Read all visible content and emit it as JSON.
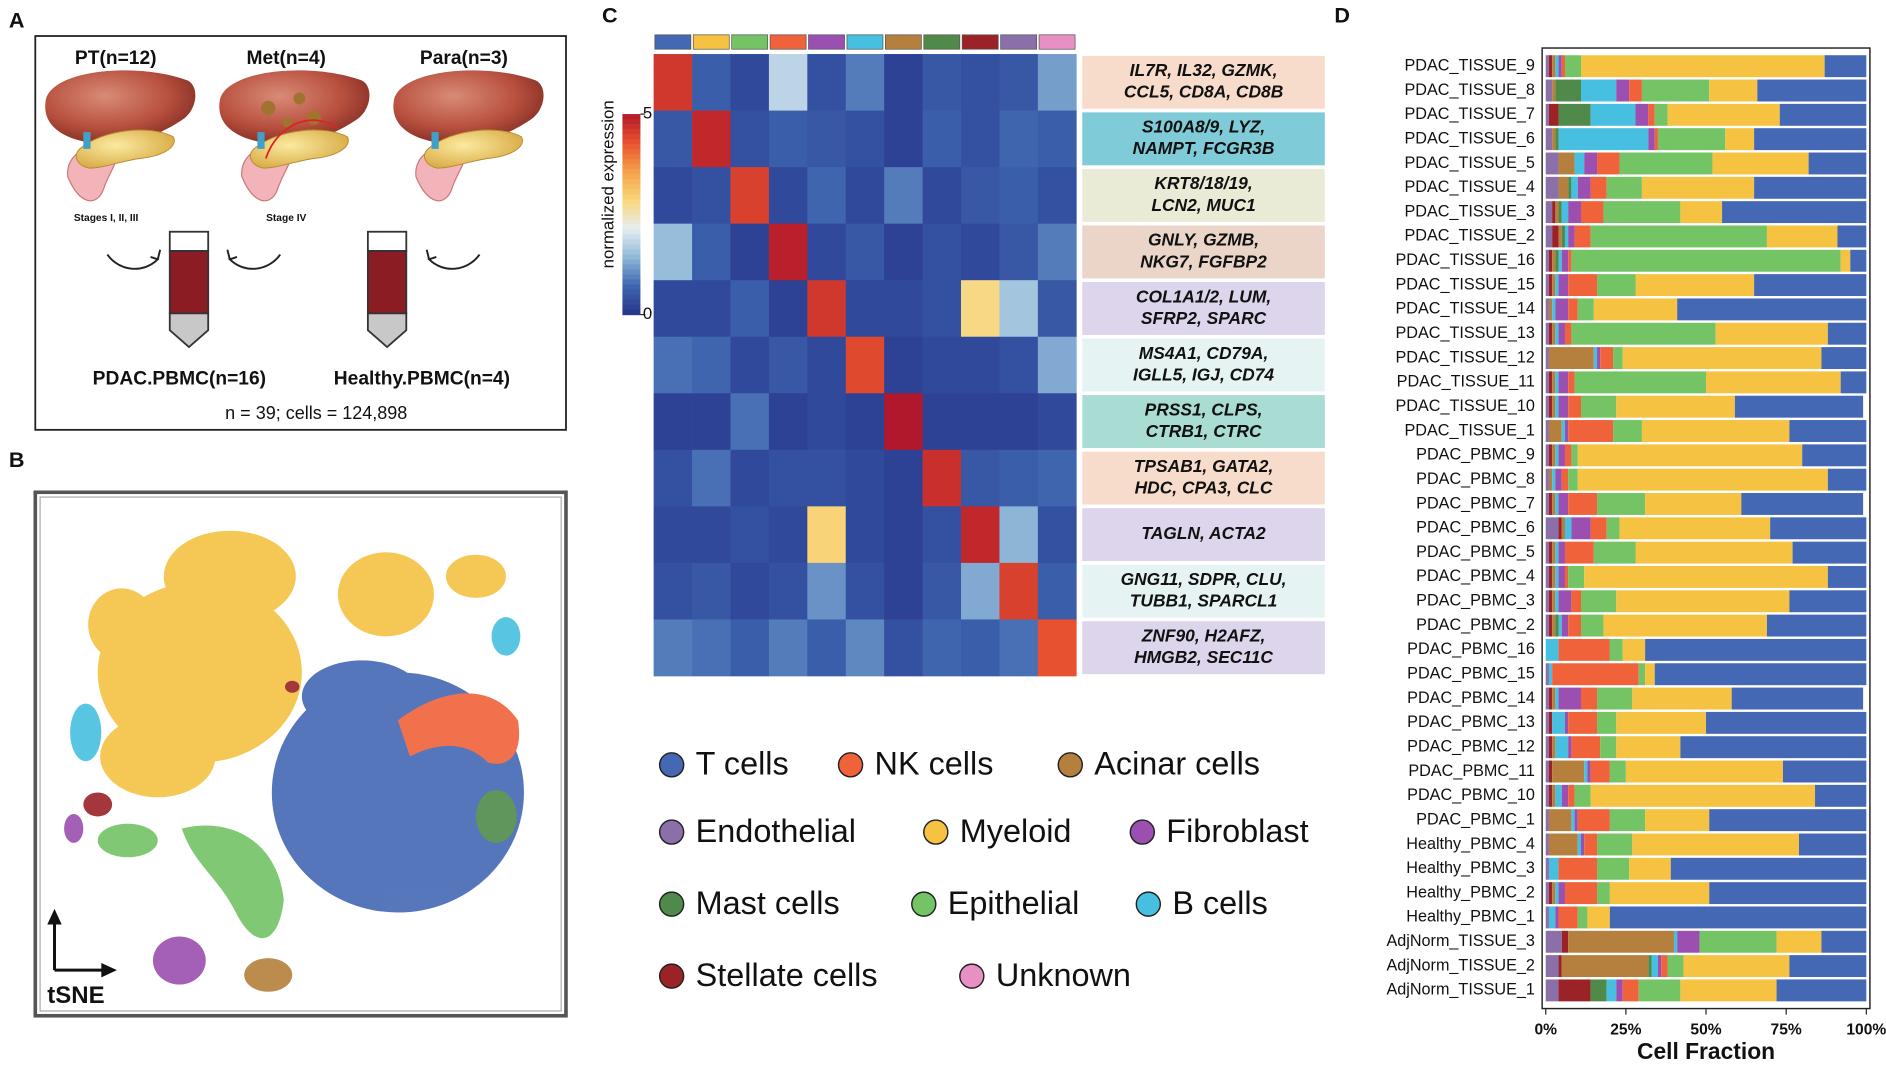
{
  "panel_labels": [
    "A",
    "B",
    "C",
    "D"
  ],
  "panel_a": {
    "groups": [
      {
        "label": "PT(n=12)",
        "stage": "Stages I, II, III"
      },
      {
        "label": "Met(n=4)",
        "stage": "Stage IV"
      },
      {
        "label": "Para(n=3)"
      }
    ],
    "pbmc": [
      "PDAC.PBMC(n=16)",
      "Healthy.PBMC(n=4)"
    ],
    "summary": "n = 39; cells = 124,898"
  },
  "panel_b": {
    "axis_label": "tSNE"
  },
  "heatmap": {
    "colorbar": {
      "label": "normalized expression",
      "ticks": [
        0,
        5
      ]
    },
    "colorscale": [
      "#27348b",
      "#3f66b0",
      "#8fb8d8",
      "#e6eef2",
      "#f9d67a",
      "#f5a04a",
      "#e8522f",
      "#b2182b"
    ],
    "columns": [
      "#4468b4",
      "#f5c242",
      "#74c365",
      "#f0623a",
      "#9b4fb0",
      "#47bfe0",
      "#b5803d",
      "#4f8a4a",
      "#9b2226",
      "#8a6fa8",
      "#e88fc3"
    ],
    "gene_labels": [
      {
        "lines": [
          "IL7R, IL32, GZMK,",
          "CCL5, CD8A, CD8B"
        ],
        "color": "#f7dccb"
      },
      {
        "lines": [
          "S100A8/9, LYZ,",
          "NAMPT, FCGR3B"
        ],
        "color": "#7fcbd8"
      },
      {
        "lines": [
          "KRT8/18/19,",
          "LCN2, MUC1"
        ],
        "color": "#e9ebd6"
      },
      {
        "lines": [
          "GNLY, GZMB,",
          "NKG7, FGFBP2"
        ],
        "color": "#ead5c8"
      },
      {
        "lines": [
          "COL1A1/2, LUM,",
          "SFRP2, SPARC"
        ],
        "color": "#ddd5eb"
      },
      {
        "lines": [
          "MS4A1, CD79A,",
          "IGLL5, IGJ, CD74"
        ],
        "color": "#e6f3f3"
      },
      {
        "lines": [
          "PRSS1, CLPS,",
          "CTRB1, CTRC"
        ],
        "color": "#a9ddd3"
      },
      {
        "lines": [
          "TPSAB1, GATA2,",
          "HDC, CPA3, CLC"
        ],
        "color": "#f7dccb"
      },
      {
        "lines": [
          "TAGLN, ACTA2"
        ],
        "color": "#ddd5eb"
      },
      {
        "lines": [
          "GNG11, SDPR, CLU,",
          "TUBB1, SPARCL1"
        ],
        "color": "#e6f3f3"
      },
      {
        "lines": [
          "ZNF90, H2AFZ,",
          "HMGB2, SEC11C"
        ],
        "color": "#ddd5eb"
      }
    ],
    "matrix": [
      [
        4.6,
        0.6,
        0.3,
        1.8,
        0.4,
        0.9,
        0.2,
        0.5,
        0.4,
        0.5,
        1.2
      ],
      [
        0.5,
        4.8,
        0.4,
        0.6,
        0.5,
        0.4,
        0.2,
        0.6,
        0.4,
        0.7,
        0.6
      ],
      [
        0.3,
        0.4,
        4.5,
        0.3,
        0.7,
        0.3,
        0.9,
        0.3,
        0.5,
        0.6,
        0.4
      ],
      [
        1.5,
        0.6,
        0.2,
        4.9,
        0.3,
        0.5,
        0.2,
        0.4,
        0.3,
        0.5,
        0.9
      ],
      [
        0.3,
        0.3,
        0.6,
        0.2,
        4.6,
        0.3,
        0.3,
        0.4,
        2.8,
        1.6,
        0.5
      ],
      [
        0.8,
        0.7,
        0.3,
        0.5,
        0.3,
        4.4,
        0.2,
        0.3,
        0.3,
        0.4,
        1.3
      ],
      [
        0.2,
        0.2,
        0.8,
        0.2,
        0.3,
        0.2,
        5.0,
        0.2,
        0.2,
        0.2,
        0.3
      ],
      [
        0.4,
        0.8,
        0.3,
        0.4,
        0.4,
        0.3,
        0.2,
        4.7,
        0.5,
        0.6,
        0.7
      ],
      [
        0.3,
        0.3,
        0.4,
        0.3,
        2.9,
        0.3,
        0.2,
        0.4,
        4.8,
        1.4,
        0.4
      ],
      [
        0.4,
        0.5,
        0.3,
        0.4,
        1.1,
        0.4,
        0.2,
        0.5,
        1.3,
        4.5,
        0.6
      ],
      [
        0.9,
        0.8,
        0.6,
        0.9,
        0.6,
        1.0,
        0.4,
        0.7,
        0.6,
        0.8,
        4.3
      ]
    ]
  },
  "legend": [
    {
      "name": "T cells",
      "color": "#4468b4"
    },
    {
      "name": "NK cells",
      "color": "#f0623a"
    },
    {
      "name": "Acinar cells",
      "color": "#b5803d"
    },
    {
      "name": "Endothelial",
      "color": "#8a6fa8"
    },
    {
      "name": "Myeloid",
      "color": "#f5c242"
    },
    {
      "name": "Fibroblast",
      "color": "#9b4fb0"
    },
    {
      "name": "Mast cells",
      "color": "#4f8a4a"
    },
    {
      "name": "Epithelial",
      "color": "#74c365"
    },
    {
      "name": "B cells",
      "color": "#47bfe0"
    },
    {
      "name": "Stellate cells",
      "color": "#9b2226"
    },
    {
      "name": "Unknown",
      "color": "#e88fc3"
    }
  ],
  "chart_data": {
    "type": "bar",
    "orientation": "horizontal",
    "stacked": true,
    "xlabel": "Cell Fraction",
    "xlim": [
      0,
      100
    ],
    "xticks": [
      {
        "value": 0,
        "label": "0%"
      },
      {
        "value": 25,
        "label": "25%"
      },
      {
        "value": 50,
        "label": "50%"
      },
      {
        "value": 75,
        "label": "75%"
      },
      {
        "value": 100,
        "label": "100%"
      }
    ],
    "categories": [
      "PDAC_TISSUE_9",
      "PDAC_TISSUE_8",
      "PDAC_TISSUE_7",
      "PDAC_TISSUE_6",
      "PDAC_TISSUE_5",
      "PDAC_TISSUE_4",
      "PDAC_TISSUE_3",
      "PDAC_TISSUE_2",
      "PDAC_TISSUE_16",
      "PDAC_TISSUE_15",
      "PDAC_TISSUE_14",
      "PDAC_TISSUE_13",
      "PDAC_TISSUE_12",
      "PDAC_TISSUE_11",
      "PDAC_TISSUE_10",
      "PDAC_TISSUE_1",
      "PDAC_PBMC_9",
      "PDAC_PBMC_8",
      "PDAC_PBMC_7",
      "PDAC_PBMC_6",
      "PDAC_PBMC_5",
      "PDAC_PBMC_4",
      "PDAC_PBMC_3",
      "PDAC_PBMC_2",
      "PDAC_PBMC_16",
      "PDAC_PBMC_15",
      "PDAC_PBMC_14",
      "PDAC_PBMC_13",
      "PDAC_PBMC_12",
      "PDAC_PBMC_11",
      "PDAC_PBMC_10",
      "PDAC_PBMC_1",
      "Healthy_PBMC_4",
      "Healthy_PBMC_3",
      "Healthy_PBMC_2",
      "Healthy_PBMC_1",
      "AdjNorm_TISSUE_3",
      "AdjNorm_TISSUE_2",
      "AdjNorm_TISSUE_1"
    ],
    "series": [
      {
        "name": "Endothelial",
        "color": "#8a6fa8",
        "values": [
          1,
          2,
          1,
          2,
          4,
          4,
          2,
          2,
          1,
          1,
          1,
          1,
          1,
          1,
          1,
          1,
          1,
          1,
          1,
          4,
          1,
          1,
          1,
          1,
          0,
          1,
          1,
          1,
          1,
          1,
          1,
          1,
          1,
          1,
          1,
          1,
          5,
          4,
          4
        ]
      },
      {
        "name": "Stellate cells",
        "color": "#9b2226",
        "values": [
          1,
          0,
          3,
          0,
          0,
          0,
          1,
          2,
          1,
          1,
          0,
          1,
          0,
          1,
          1,
          0,
          1,
          0,
          1,
          1,
          1,
          1,
          1,
          1,
          0,
          0,
          1,
          1,
          1,
          1,
          1,
          0,
          0,
          0,
          1,
          0,
          2,
          1,
          10
        ]
      },
      {
        "name": "Acinar cells",
        "color": "#b5803d",
        "values": [
          1,
          1,
          0,
          1,
          5,
          3,
          1,
          1,
          1,
          1,
          1,
          1,
          14,
          1,
          1,
          4,
          1,
          1,
          1,
          1,
          1,
          1,
          1,
          1,
          0,
          0,
          1,
          0,
          1,
          10,
          1,
          7,
          9,
          0,
          1,
          0,
          33,
          27,
          0
        ]
      },
      {
        "name": "Mast cells",
        "color": "#4f8a4a",
        "values": [
          0,
          8,
          10,
          1,
          0,
          1,
          1,
          1,
          1,
          0,
          0,
          0,
          0,
          0,
          0,
          0,
          0,
          0,
          0,
          0,
          0,
          0,
          0,
          1,
          0,
          0,
          0,
          0,
          0,
          0,
          0,
          0,
          0,
          0,
          0,
          0,
          0,
          1,
          5
        ]
      },
      {
        "name": "B cells",
        "color": "#47bfe0",
        "values": [
          1,
          11,
          14,
          28,
          3,
          2,
          2,
          1,
          1,
          1,
          1,
          1,
          1,
          1,
          1,
          1,
          1,
          1,
          1,
          2,
          1,
          1,
          1,
          1,
          4,
          1,
          1,
          4,
          4,
          1,
          2,
          1,
          1,
          3,
          1,
          2,
          1,
          2,
          3
        ]
      },
      {
        "name": "Fibroblast",
        "color": "#9b4fb0",
        "values": [
          1,
          4,
          4,
          2,
          4,
          4,
          4,
          2,
          2,
          3,
          4,
          2,
          1,
          3,
          3,
          1,
          2,
          2,
          3,
          6,
          2,
          2,
          4,
          2,
          0,
          0,
          7,
          1,
          1,
          1,
          2,
          1,
          1,
          0,
          2,
          1,
          7,
          1,
          2
        ]
      },
      {
        "name": "NK cells",
        "color": "#f0623a",
        "values": [
          1,
          4,
          2,
          1,
          7,
          5,
          7,
          5,
          1,
          9,
          3,
          2,
          4,
          2,
          4,
          14,
          2,
          2,
          9,
          5,
          9,
          1,
          3,
          4,
          16,
          27,
          5,
          9,
          9,
          6,
          2,
          10,
          4,
          12,
          10,
          6,
          0,
          2,
          5
        ]
      },
      {
        "name": "Epithelial",
        "color": "#74c365",
        "values": [
          5,
          21,
          4,
          21,
          29,
          11,
          24,
          55,
          84,
          12,
          5,
          45,
          3,
          41,
          11,
          9,
          2,
          3,
          15,
          4,
          13,
          5,
          11,
          7,
          4,
          2,
          11,
          6,
          5,
          5,
          5,
          11,
          11,
          10,
          4,
          3,
          24,
          5,
          13
        ]
      },
      {
        "name": "Myeloid",
        "color": "#f5c242",
        "values": [
          76,
          15,
          35,
          9,
          30,
          35,
          13,
          22,
          3,
          37,
          26,
          35,
          62,
          42,
          37,
          46,
          70,
          78,
          30,
          47,
          49,
          76,
          54,
          51,
          7,
          3,
          31,
          28,
          20,
          49,
          70,
          20,
          52,
          13,
          31,
          7,
          14,
          33,
          30
        ]
      },
      {
        "name": "T cells",
        "color": "#4468b4",
        "values": [
          13,
          34,
          27,
          35,
          18,
          35,
          45,
          9,
          5,
          35,
          59,
          12,
          14,
          8,
          40,
          24,
          20,
          12,
          38,
          30,
          23,
          12,
          24,
          31,
          69,
          66,
          41,
          50,
          58,
          26,
          16,
          49,
          21,
          61,
          49,
          80,
          14,
          24,
          28
        ]
      }
    ]
  }
}
